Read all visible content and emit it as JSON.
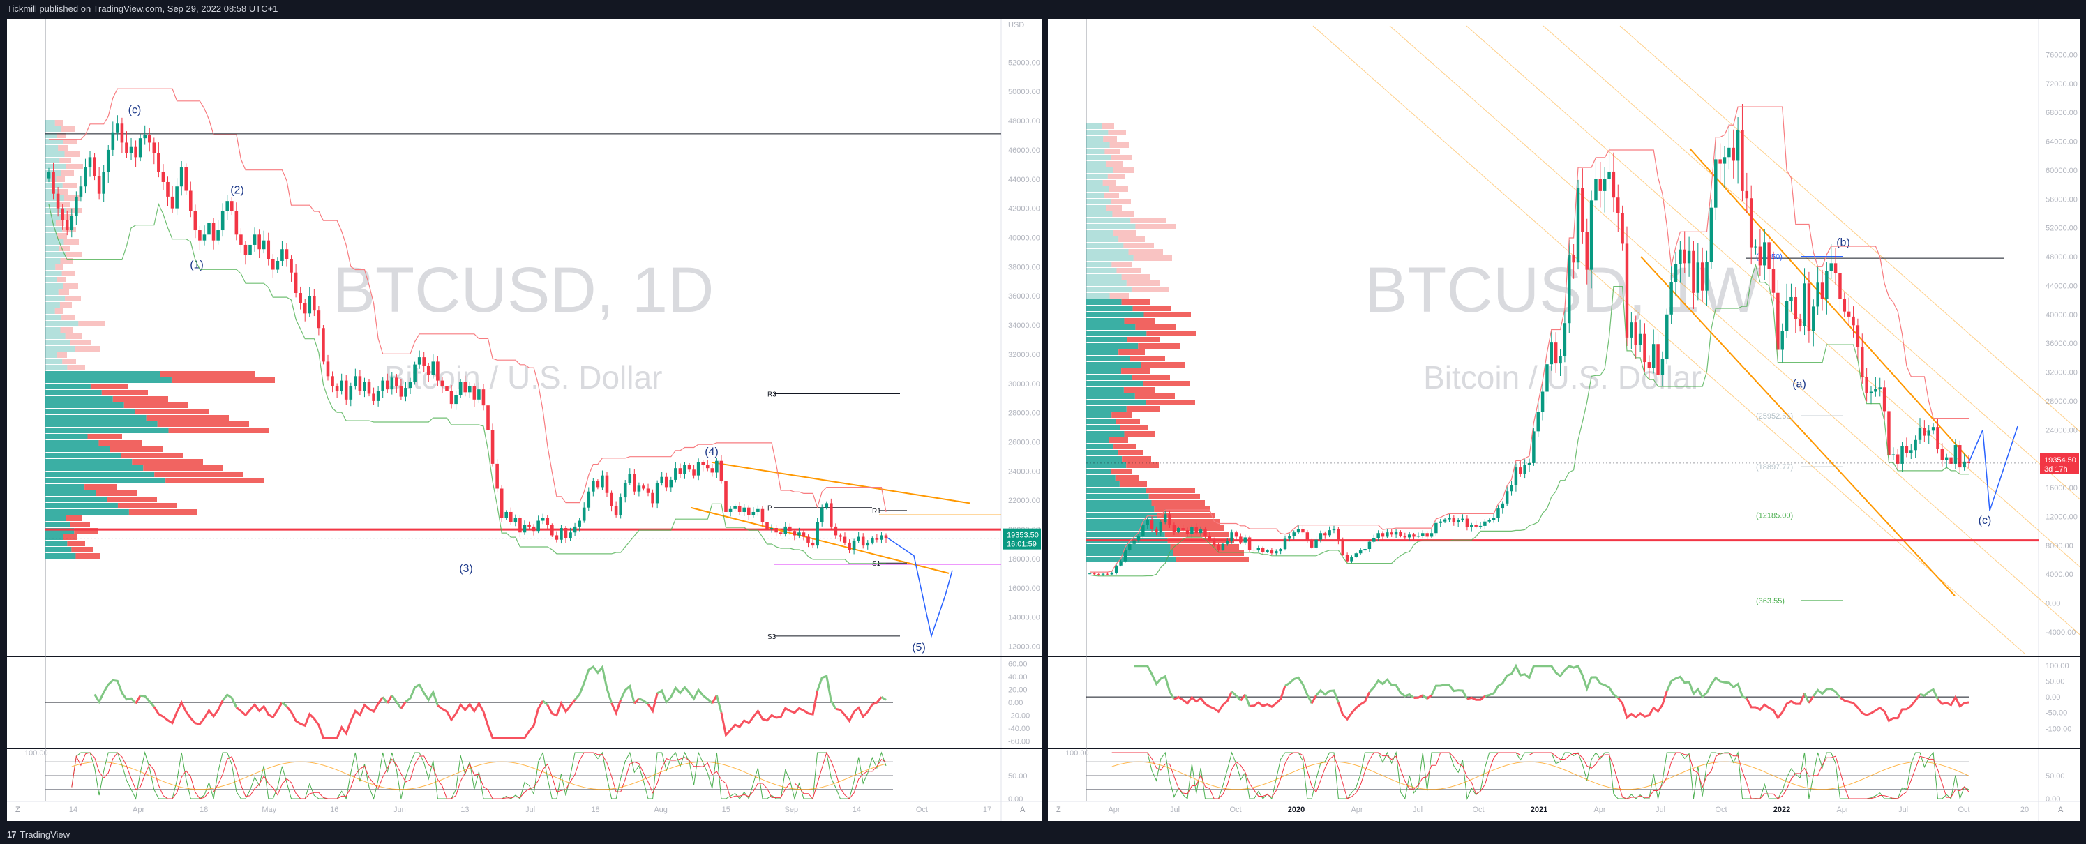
{
  "header": {
    "published": "Tickmill published on TradingView.com, Sep 29, 2022 08:58 UTC+1"
  },
  "footer": {
    "brand": "TradingView",
    "logo": "17"
  },
  "chart_data": [
    {
      "type": "candlestick",
      "symbol": "BTCUSD",
      "watermark": {
        "line1": "BTCUSD, 1D",
        "line2": "Bitcoin / U.S. Dollar"
      },
      "currency": "USD",
      "y_ticks": [
        "52000.00",
        "50000.00",
        "48000.00",
        "46000.00",
        "44000.00",
        "42000.00",
        "40000.00",
        "38000.00",
        "36000.00",
        "34000.00",
        "32000.00",
        "30000.00",
        "28000.00",
        "26000.00",
        "24000.00",
        "22000.00",
        "20000.00",
        "18000.00",
        "16000.00",
        "14000.00",
        "12000.00"
      ],
      "ylim": [
        11500,
        54500
      ],
      "x_ticks": [
        "14",
        "Apr",
        "18",
        "May",
        "16",
        "Jun",
        "13",
        "Jul",
        "18",
        "Aug",
        "15",
        "Sep",
        "14",
        "Oct",
        "17"
      ],
      "price_label": {
        "value": "19353.50",
        "countdown": "16:01:59"
      },
      "closes": [
        44500,
        43000,
        42000,
        41200,
        40500,
        41500,
        42800,
        43500,
        44800,
        45500,
        44200,
        43000,
        44500,
        46000,
        47200,
        47800,
        46500,
        45800,
        46200,
        45500,
        46800,
        47000,
        46500,
        45800,
        44500,
        43800,
        42800,
        42000,
        43500,
        44800,
        43200,
        41800,
        40500,
        39800,
        40200,
        41000,
        39800,
        40500,
        41800,
        42500,
        41800,
        40200,
        39500,
        38800,
        39500,
        40200,
        39200,
        39800,
        38500,
        37800,
        38400,
        39200,
        38500,
        37600,
        36200,
        35500,
        34800,
        36000,
        35000,
        33800,
        31500,
        30500,
        29800,
        29500,
        30200,
        28900,
        29800,
        30500,
        29500,
        30100,
        29300,
        28800,
        29500,
        30200,
        29600,
        30400,
        29800,
        29100,
        29700,
        30100,
        31300,
        31800,
        31200,
        30600,
        31500,
        30200,
        29800,
        29500,
        28600,
        29200,
        30100,
        29400,
        29800,
        28900,
        29600,
        28500,
        26800,
        24500,
        22800,
        20800,
        21200,
        20500,
        20800,
        19800,
        20300,
        20200,
        19900,
        20600,
        20800,
        20300,
        19600,
        19300,
        20100,
        19400,
        19800,
        20200,
        20600,
        21500,
        22600,
        23300,
        22900,
        23700,
        22500,
        21600,
        21000,
        22200,
        23200,
        23800,
        22600,
        23000,
        22800,
        22500,
        21800,
        23200,
        23600,
        22900,
        23400,
        24200,
        23800,
        24400,
        24100,
        23700,
        24600,
        24400,
        24200,
        23900,
        24700,
        23300,
        21200,
        21400,
        21600,
        21200,
        21500,
        21000,
        21200,
        21400,
        20500,
        20000,
        20100,
        19800,
        19700,
        20200,
        19900,
        19600,
        19800,
        19500,
        19100,
        18900,
        20500,
        21500,
        21800,
        20200,
        19600,
        19500,
        19100,
        18600,
        19200,
        19500,
        18900,
        19100,
        19400,
        19300,
        19600,
        19400
      ],
      "rsi_ticks": [
        "60.00",
        "40.00",
        "20.00",
        "0.00",
        "-20.00",
        "-40.00",
        "-60.00"
      ],
      "stoch_ticks": [
        "100.00",
        "50.00",
        "0.00"
      ],
      "waves": [
        "(c)",
        "(2)",
        "(1)",
        "(3)",
        "(4)",
        "(5)"
      ],
      "pivots": [
        "R3",
        "P",
        "R1",
        "S1",
        "S3"
      ]
    },
    {
      "type": "candlestick",
      "symbol": "BTCUSD",
      "watermark": {
        "line1": "BTCUSD, 1W",
        "line2": "Bitcoin / U.S. Dollar"
      },
      "y_ticks": [
        "76000.00",
        "72000.00",
        "68000.00",
        "64000.00",
        "60000.00",
        "56000.00",
        "52000.00",
        "48000.00",
        "44000.00",
        "40000.00",
        "36000.00",
        "32000.00",
        "28000.00",
        "24000.00",
        "20000.00",
        "16000.00",
        "12000.00",
        "8000.00",
        "4000.00",
        "0.00",
        "-4000.00"
      ],
      "ylim": [
        -7000,
        80000
      ],
      "x_ticks": [
        "Apr",
        "Jul",
        "Oct",
        "2020",
        "Apr",
        "Jul",
        "Oct",
        "2021",
        "Apr",
        "Jul",
        "Oct",
        "2022",
        "Apr",
        "Jul",
        "Oct",
        "20"
      ],
      "price_label": {
        "value": "19354.50",
        "countdown": "3d 17h"
      },
      "closes": [
        4100,
        4000,
        3950,
        4050,
        3980,
        4200,
        5200,
        5800,
        7400,
        8200,
        8700,
        9300,
        10800,
        11500,
        10200,
        9800,
        11200,
        12300,
        10800,
        9900,
        10400,
        10100,
        9600,
        10500,
        9700,
        10200,
        9300,
        8700,
        8100,
        7400,
        8200,
        8600,
        9800,
        9200,
        8400,
        9100,
        7400,
        7300,
        7600,
        7100,
        7300,
        6900,
        7200,
        7500,
        8900,
        9300,
        9800,
        10300,
        9800,
        8700,
        7700,
        8800,
        9700,
        9400,
        10100,
        10300,
        8600,
        6700,
        5800,
        6400,
        6900,
        7300,
        7500,
        8500,
        9000,
        9700,
        9200,
        9800,
        9500,
        9900,
        9300,
        9100,
        9500,
        9200,
        9300,
        9700,
        9200,
        9700,
        11100,
        11300,
        11600,
        11800,
        11200,
        11500,
        11700,
        10500,
        10800,
        10600,
        10700,
        11300,
        11500,
        11800,
        13100,
        13800,
        15500,
        16300,
        18800,
        17900,
        19100,
        19400,
        23800,
        26500,
        29300,
        33100,
        36100,
        33200,
        34200,
        38800,
        48200,
        47200,
        57500,
        51400,
        46200,
        55800,
        58800,
        57100,
        58800,
        59800,
        56200,
        54000,
        49800,
        36800,
        38900,
        35800,
        37300,
        33400,
        32600,
        35900,
        31600,
        33800,
        40000,
        44500,
        47000,
        49000,
        47100,
        48800,
        43000,
        47200,
        43300,
        47300,
        54800,
        61500,
        60900,
        61800,
        63100,
        61300,
        65500,
        57100,
        56100,
        49300,
        49400,
        46800,
        50000,
        46300,
        43000,
        35100,
        37700,
        41900,
        42400,
        39300,
        38400,
        44300,
        37700,
        41100,
        44400,
        42200,
        46000,
        47100,
        45700,
        42200,
        40400,
        39700,
        38500,
        35500,
        31300,
        29100,
        29300,
        29700,
        29900,
        26600,
        20500,
        20600,
        19300,
        21800,
        20800,
        21200,
        22600,
        24300,
        23200,
        23900,
        24400,
        21400,
        19800,
        20200,
        19300,
        21900,
        18800,
        19600,
        19400
      ],
      "rsi_ticks": [
        "100.00",
        "50.00",
        "0.00",
        "-50.00",
        "-100.00"
      ],
      "stoch_ticks": [
        "100.00",
        "50.00",
        "0.00"
      ],
      "waves": [
        "(b)",
        "(a)",
        "(c)"
      ],
      "levels": [
        "(48050)",
        "(25952.66)",
        "(18897.77)",
        "(12185.00)",
        "(363.55)"
      ]
    }
  ]
}
